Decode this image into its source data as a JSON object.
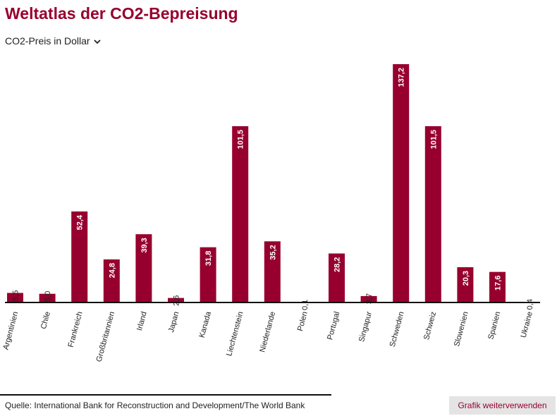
{
  "title": "Weltatlas der CO2-Bepreisung",
  "selector": {
    "label": "CO2-Preis in Dollar",
    "icon": "chevron-down-icon"
  },
  "chart_data": {
    "type": "bar",
    "categories": [
      "Argentinien",
      "Chile",
      "Frankreich",
      "Großbritannien",
      "Irland",
      "Japan",
      "Kanada",
      "Liechtenstein",
      "Niederlande",
      "Polen",
      "Portugal",
      "Singapur",
      "Schweden",
      "Schweiz",
      "Slowenien",
      "Spanien",
      "Ukraine"
    ],
    "values": [
      5.5,
      5.0,
      52.4,
      24.8,
      39.3,
      2.6,
      31.8,
      101.5,
      35.2,
      0.1,
      28.2,
      3.7,
      137.2,
      101.5,
      20.3,
      17.6,
      0.4
    ],
    "value_labels": [
      "5,5",
      "5,0",
      "52,4",
      "24,8",
      "39,3",
      "2,6",
      "31,8",
      "101,5",
      "35,2",
      "0,1",
      "28,2",
      "3,7",
      "137,2",
      "101,5",
      "20,3",
      "17,6",
      "0,4"
    ],
    "ylim": [
      0,
      137.2
    ],
    "grid": false,
    "bar_color": "#97002e"
  },
  "source": "Quelle: International Bank for Reconstruction and Development/The World Bank",
  "share_button": "Grafik weiterverwenden"
}
